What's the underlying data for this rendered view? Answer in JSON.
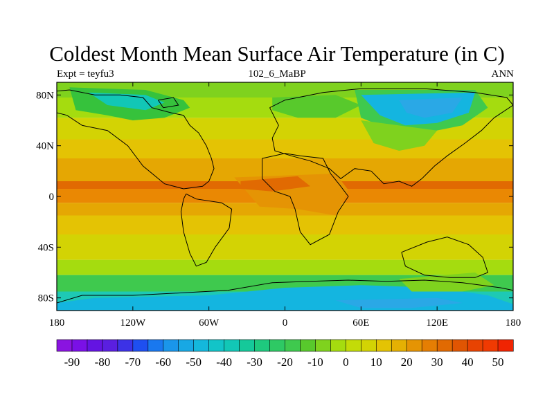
{
  "figure": {
    "title": "Coldest Month Mean Surface Air Temperature (in C)",
    "left_string": "Expt = teyfu3",
    "center_string": "102_6_MaBP",
    "right_string": "ANN"
  },
  "map": {
    "projection": "cylindrical-equidistant",
    "lon_range": [
      -180,
      180
    ],
    "lat_range": [
      -90,
      90
    ],
    "variable": "coldest month mean surface air temperature",
    "units": "C",
    "lon_ticks": [
      {
        "value": -180,
        "label": "180"
      },
      {
        "value": -120,
        "label": "120W"
      },
      {
        "value": -60,
        "label": "60W"
      },
      {
        "value": 0,
        "label": "0"
      },
      {
        "value": 60,
        "label": "60E"
      },
      {
        "value": 120,
        "label": "120E"
      },
      {
        "value": 180,
        "label": "180"
      }
    ],
    "lat_ticks": [
      {
        "value": 80,
        "label": "80N"
      },
      {
        "value": 40,
        "label": "40N"
      },
      {
        "value": 0,
        "label": "0"
      },
      {
        "value": -40,
        "label": "40S"
      },
      {
        "value": -80,
        "label": "80S"
      }
    ],
    "zonal_bands": [
      {
        "lat_max": 90,
        "lat_min": 78,
        "color": "#7fd21e"
      },
      {
        "lat_max": 78,
        "lat_min": 62,
        "color": "#a5dc0f"
      },
      {
        "lat_max": 62,
        "lat_min": 45,
        "color": "#d3d304"
      },
      {
        "lat_max": 45,
        "lat_min": 30,
        "color": "#e4c304"
      },
      {
        "lat_max": 30,
        "lat_min": 12,
        "color": "#e5a703"
      },
      {
        "lat_max": 12,
        "lat_min": 6,
        "color": "#e16a02"
      },
      {
        "lat_max": 6,
        "lat_min": -5,
        "color": "#ea8803"
      },
      {
        "lat_max": -5,
        "lat_min": -15,
        "color": "#e5a703"
      },
      {
        "lat_max": -15,
        "lat_min": -30,
        "color": "#e4c304"
      },
      {
        "lat_max": -30,
        "lat_min": -50,
        "color": "#d3d304"
      },
      {
        "lat_max": -50,
        "lat_min": -62,
        "color": "#a5dc0f"
      },
      {
        "lat_max": -62,
        "lat_min": -75,
        "color": "#3fc94e"
      },
      {
        "lat_max": -75,
        "lat_min": -90,
        "color": "#1ec9b4"
      }
    ],
    "regions": [
      {
        "name": "north-america-interior",
        "color": "#36c23c",
        "points": [
          [
            -170,
            86
          ],
          [
            -110,
            84
          ],
          [
            -80,
            76
          ],
          [
            -75,
            70
          ],
          [
            -95,
            62
          ],
          [
            -120,
            60
          ],
          [
            -140,
            64
          ],
          [
            -165,
            68
          ]
        ]
      },
      {
        "name": "north-america-cold-core",
        "color": "#12c7b6",
        "points": [
          [
            -155,
            82
          ],
          [
            -110,
            80
          ],
          [
            -95,
            74
          ],
          [
            -110,
            68
          ],
          [
            -140,
            72
          ]
        ]
      },
      {
        "name": "europe-north",
        "color": "#58c92c",
        "points": [
          [
            -10,
            78
          ],
          [
            40,
            80
          ],
          [
            60,
            72
          ],
          [
            40,
            62
          ],
          [
            10,
            62
          ],
          [
            -10,
            68
          ]
        ]
      },
      {
        "name": "siberia-cold",
        "color": "#3fc94e",
        "points": [
          [
            55,
            84
          ],
          [
            150,
            84
          ],
          [
            160,
            70
          ],
          [
            140,
            56
          ],
          [
            110,
            50
          ],
          [
            85,
            52
          ],
          [
            60,
            62
          ]
        ]
      },
      {
        "name": "siberia-very-cold",
        "color": "#14b5e0",
        "points": [
          [
            60,
            80
          ],
          [
            150,
            82
          ],
          [
            145,
            66
          ],
          [
            120,
            58
          ],
          [
            95,
            56
          ],
          [
            75,
            64
          ]
        ]
      },
      {
        "name": "siberia-core",
        "color": "#2aa8e6",
        "points": [
          [
            90,
            76
          ],
          [
            140,
            78
          ],
          [
            132,
            66
          ],
          [
            110,
            62
          ],
          [
            96,
            66
          ]
        ]
      },
      {
        "name": "central-asia-cool",
        "color": "#7fd21e",
        "points": [
          [
            60,
            60
          ],
          [
            120,
            52
          ],
          [
            110,
            40
          ],
          [
            90,
            36
          ],
          [
            70,
            42
          ]
        ]
      },
      {
        "name": "africa-warm",
        "color": "#e59404",
        "points": [
          [
            -40,
            15
          ],
          [
            40,
            18
          ],
          [
            50,
            5
          ],
          [
            40,
            -15
          ],
          [
            10,
            -10
          ],
          [
            -20,
            -8
          ]
        ]
      },
      {
        "name": "east-atlantic-hot",
        "color": "#e16a02",
        "points": [
          [
            -35,
            12
          ],
          [
            10,
            16
          ],
          [
            20,
            8
          ],
          [
            -10,
            4
          ],
          [
            -35,
            6
          ]
        ]
      },
      {
        "name": "antarctica-cold",
        "color": "#14b5e0",
        "points": [
          [
            -150,
            -80
          ],
          [
            -60,
            -78
          ],
          [
            0,
            -72
          ],
          [
            60,
            -70
          ],
          [
            120,
            -72
          ],
          [
            160,
            -78
          ],
          [
            180,
            -85
          ],
          [
            180,
            -90
          ],
          [
            -180,
            -90
          ],
          [
            -180,
            -84
          ]
        ]
      },
      {
        "name": "antarctica-core",
        "color": "#2aa8e6",
        "points": [
          [
            40,
            -82
          ],
          [
            120,
            -80
          ],
          [
            140,
            -84
          ],
          [
            100,
            -88
          ],
          [
            60,
            -88
          ]
        ]
      },
      {
        "name": "australia-land",
        "color": "#7fd21e",
        "points": [
          [
            90,
            -65
          ],
          [
            150,
            -60
          ],
          [
            165,
            -70
          ],
          [
            140,
            -75
          ],
          [
            100,
            -75
          ]
        ]
      }
    ],
    "coastlines": [
      {
        "name": "north-america-coast",
        "points": [
          [
            -180,
            83
          ],
          [
            -170,
            84
          ],
          [
            -150,
            80
          ],
          [
            -130,
            80
          ],
          [
            -112,
            78
          ],
          [
            -105,
            70
          ],
          [
            -90,
            66
          ],
          [
            -80,
            64
          ],
          [
            -75,
            56
          ],
          [
            -68,
            50
          ],
          [
            -62,
            40
          ],
          [
            -58,
            30
          ],
          [
            -56,
            22
          ],
          [
            -60,
            12
          ],
          [
            -65,
            8
          ],
          [
            -80,
            6
          ],
          [
            -95,
            10
          ],
          [
            -112,
            24
          ],
          [
            -124,
            40
          ],
          [
            -140,
            52
          ],
          [
            -160,
            56
          ],
          [
            -172,
            64
          ],
          [
            -180,
            66
          ]
        ]
      },
      {
        "name": "south-america-coast",
        "points": [
          [
            -78,
            2
          ],
          [
            -70,
            -2
          ],
          [
            -50,
            -5
          ],
          [
            -42,
            -10
          ],
          [
            -44,
            -25
          ],
          [
            -55,
            -40
          ],
          [
            -62,
            -52
          ],
          [
            -70,
            -55
          ],
          [
            -75,
            -45
          ],
          [
            -80,
            -28
          ],
          [
            -82,
            -12
          ],
          [
            -80,
            -2
          ],
          [
            -78,
            2
          ]
        ]
      },
      {
        "name": "eurasia-coast",
        "points": [
          [
            -12,
            70
          ],
          [
            0,
            76
          ],
          [
            30,
            82
          ],
          [
            60,
            85
          ],
          [
            110,
            85
          ],
          [
            150,
            82
          ],
          [
            175,
            78
          ],
          [
            180,
            72
          ],
          [
            165,
            62
          ],
          [
            155,
            52
          ],
          [
            142,
            42
          ],
          [
            128,
            32
          ],
          [
            118,
            24
          ],
          [
            108,
            14
          ],
          [
            100,
            8
          ],
          [
            90,
            12
          ],
          [
            78,
            10
          ],
          [
            68,
            20
          ],
          [
            55,
            22
          ],
          [
            44,
            14
          ],
          [
            35,
            22
          ],
          [
            20,
            28
          ],
          [
            5,
            32
          ],
          [
            -8,
            36
          ],
          [
            -10,
            46
          ],
          [
            -5,
            56
          ],
          [
            -12,
            70
          ]
        ]
      },
      {
        "name": "africa-coast",
        "points": [
          [
            -18,
            30
          ],
          [
            0,
            34
          ],
          [
            12,
            32
          ],
          [
            30,
            30
          ],
          [
            36,
            18
          ],
          [
            44,
            8
          ],
          [
            50,
            0
          ],
          [
            42,
            -12
          ],
          [
            35,
            -30
          ],
          [
            20,
            -38
          ],
          [
            12,
            -28
          ],
          [
            8,
            -10
          ],
          [
            4,
            0
          ],
          [
            -8,
            4
          ],
          [
            -18,
            14
          ],
          [
            -18,
            30
          ]
        ]
      },
      {
        "name": "australia-coast",
        "points": [
          [
            92,
            -44
          ],
          [
            112,
            -36
          ],
          [
            128,
            -32
          ],
          [
            145,
            -38
          ],
          [
            156,
            -48
          ],
          [
            160,
            -60
          ],
          [
            150,
            -64
          ],
          [
            130,
            -64
          ],
          [
            110,
            -62
          ],
          [
            95,
            -55
          ],
          [
            92,
            -44
          ]
        ]
      },
      {
        "name": "antarctica-coast",
        "points": [
          [
            -180,
            -84
          ],
          [
            -160,
            -78
          ],
          [
            -120,
            -78
          ],
          [
            -80,
            -76
          ],
          [
            -45,
            -74
          ],
          [
            -10,
            -68
          ],
          [
            20,
            -67
          ],
          [
            50,
            -66
          ],
          [
            80,
            -67
          ],
          [
            110,
            -66
          ],
          [
            140,
            -68
          ],
          [
            170,
            -72
          ],
          [
            180,
            -74
          ]
        ]
      },
      {
        "name": "small-island-greenland-like",
        "points": [
          [
            -100,
            76
          ],
          [
            -88,
            78
          ],
          [
            -84,
            72
          ],
          [
            -96,
            70
          ],
          [
            -100,
            76
          ]
        ]
      }
    ]
  },
  "colorbar": {
    "labels": [
      "-90",
      "-80",
      "-70",
      "-60",
      "-50",
      "-40",
      "-30",
      "-20",
      "-10",
      "0",
      "10",
      "20",
      "30",
      "40",
      "50"
    ],
    "colors": [
      "#8a14e0",
      "#7a10e6",
      "#6414e2",
      "#5a1fe0",
      "#3c32e6",
      "#1e4ff0",
      "#1978ef",
      "#1a96ea",
      "#18a8e4",
      "#14b8dc",
      "#12c4c8",
      "#12c7b6",
      "#15c99a",
      "#1ec97e",
      "#2ec964",
      "#3fc94e",
      "#58c92c",
      "#7fd21e",
      "#a5dc0f",
      "#c3db08",
      "#d3d304",
      "#e4c304",
      "#e5b003",
      "#e59404",
      "#e57e03",
      "#e16a02",
      "#e05502",
      "#e84302",
      "#f03a02",
      "#f02402"
    ]
  }
}
